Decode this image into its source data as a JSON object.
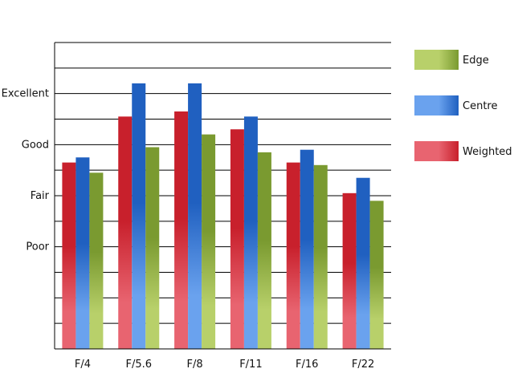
{
  "chart_data": {
    "type": "bar",
    "categories": [
      "F/4",
      "F/5.6",
      "F/8",
      "F/11",
      "F/16",
      "F/22"
    ],
    "series": [
      {
        "name": "Weighted",
        "values": [
          2.65,
          3.55,
          3.65,
          3.3,
          2.65,
          2.05
        ],
        "color": "#c8202c"
      },
      {
        "name": "Centre",
        "values": [
          2.75,
          4.2,
          4.2,
          3.55,
          2.9,
          2.35
        ],
        "color": "#2060c0"
      },
      {
        "name": "Edge",
        "values": [
          2.45,
          2.95,
          3.2,
          2.85,
          2.6,
          1.9
        ],
        "color": "#7a9a30"
      }
    ],
    "y_tick_labels": [
      {
        "value": 1,
        "label": "Poor"
      },
      {
        "value": 2,
        "label": "Fair"
      },
      {
        "value": 3,
        "label": "Good"
      },
      {
        "value": 4,
        "label": "Excellent"
      }
    ],
    "ylim": [
      -1,
      5
    ],
    "grid": true,
    "legend_order": [
      "Edge",
      "Centre",
      "Weighted"
    ],
    "legend_placement": "right",
    "title": "",
    "xlabel": "",
    "ylabel": ""
  }
}
